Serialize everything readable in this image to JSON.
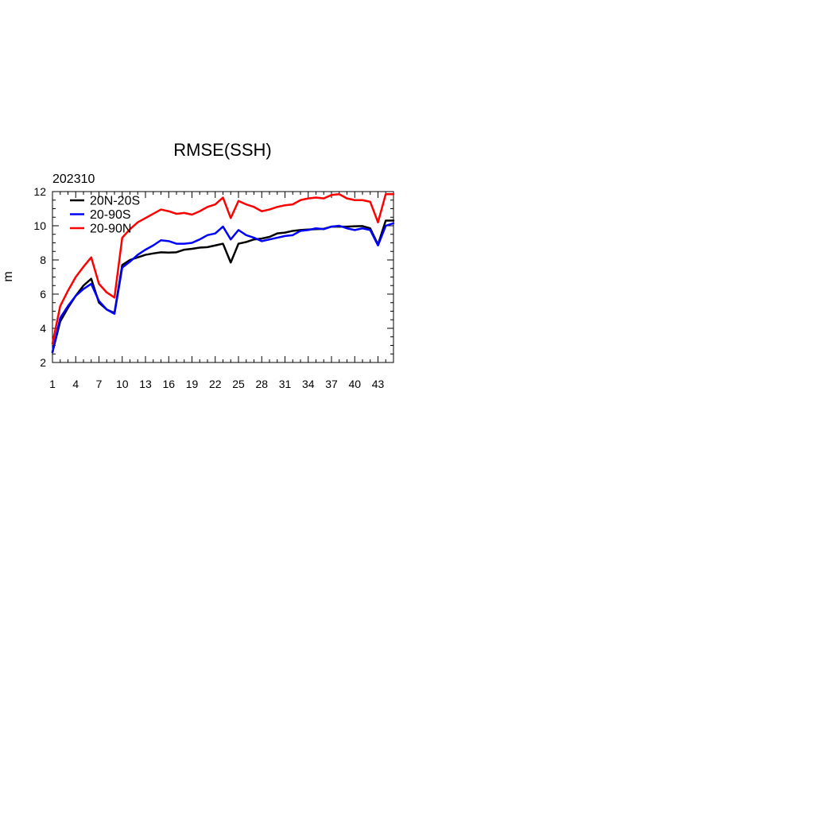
{
  "chart_data": {
    "type": "line",
    "title": "RMSE(SSH)",
    "subtitle": "202310",
    "xlabel": "",
    "ylabel": "m",
    "xlim": [
      1,
      45
    ],
    "ylim": [
      2,
      12
    ],
    "xticks": [
      1,
      4,
      7,
      10,
      13,
      16,
      19,
      22,
      25,
      28,
      31,
      34,
      37,
      40,
      43
    ],
    "yticks": [
      2,
      4,
      6,
      8,
      10,
      12
    ],
    "grid": false,
    "legend_position": "top-left",
    "x": [
      1,
      2,
      3,
      4,
      5,
      6,
      7,
      8,
      9,
      10,
      11,
      12,
      13,
      14,
      15,
      16,
      17,
      18,
      19,
      20,
      21,
      22,
      23,
      24,
      25,
      26,
      27,
      28,
      29,
      30,
      31,
      32,
      33,
      34,
      35,
      36,
      37,
      38,
      39,
      40,
      41,
      42,
      43,
      44,
      45
    ],
    "series": [
      {
        "name": "20N-20S",
        "color": "#000000",
        "values": [
          2.6,
          4.4,
          5.2,
          5.9,
          6.5,
          6.9,
          5.5,
          5.1,
          4.9,
          7.7,
          8.0,
          8.15,
          8.3,
          8.38,
          8.45,
          8.43,
          8.45,
          8.6,
          8.65,
          8.72,
          8.75,
          8.85,
          8.95,
          7.85,
          8.95,
          9.05,
          9.2,
          9.25,
          9.35,
          9.55,
          9.6,
          9.7,
          9.75,
          9.78,
          9.8,
          9.82,
          9.95,
          9.95,
          9.95,
          9.97,
          9.98,
          9.85,
          8.9,
          10.3,
          10.3
        ]
      },
      {
        "name": "20-90S",
        "color": "#0000ff",
        "values": [
          2.6,
          4.6,
          5.3,
          5.9,
          6.3,
          6.6,
          5.6,
          5.1,
          4.85,
          7.55,
          7.9,
          8.3,
          8.6,
          8.85,
          9.15,
          9.1,
          8.95,
          8.95,
          9.0,
          9.2,
          9.45,
          9.55,
          9.95,
          9.2,
          9.75,
          9.45,
          9.3,
          9.1,
          9.2,
          9.3,
          9.4,
          9.45,
          9.7,
          9.75,
          9.85,
          9.8,
          9.95,
          10.0,
          9.85,
          9.75,
          9.85,
          9.75,
          8.85,
          10.0,
          10.15
        ]
      },
      {
        "name": "20-90N",
        "color": "#ff0000",
        "values": [
          3.1,
          5.3,
          6.2,
          7.0,
          7.6,
          8.15,
          6.6,
          6.1,
          5.8,
          9.3,
          9.8,
          10.2,
          10.45,
          10.7,
          10.95,
          10.85,
          10.7,
          10.75,
          10.65,
          10.85,
          11.1,
          11.25,
          11.65,
          10.45,
          11.45,
          11.25,
          11.1,
          10.85,
          10.95,
          11.1,
          11.2,
          11.25,
          11.5,
          11.6,
          11.65,
          11.6,
          11.8,
          11.85,
          11.6,
          11.5,
          11.5,
          11.4,
          10.2,
          11.85,
          11.85
        ]
      }
    ]
  }
}
